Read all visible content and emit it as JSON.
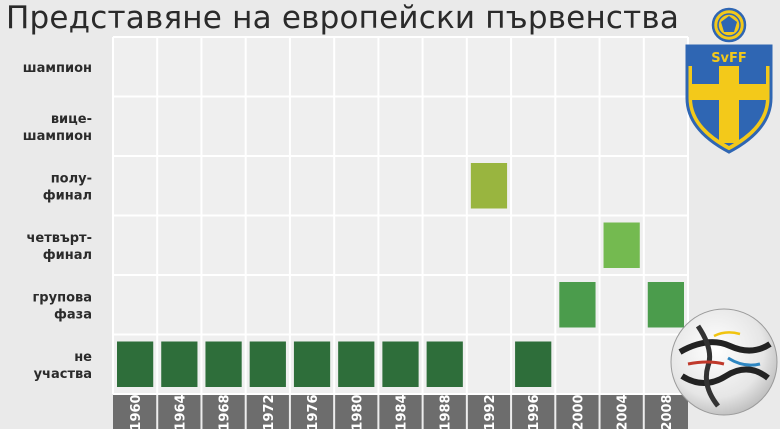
{
  "chart_data": {
    "type": "table",
    "title": "Представяне на европейски първенства",
    "levels": [
      [
        "шампион"
      ],
      [
        "вице-",
        "шампион"
      ],
      [
        "полу-",
        "финал"
      ],
      [
        "четвърт-",
        "финал"
      ],
      [
        "групова",
        "фаза"
      ],
      [
        "не",
        "участва"
      ]
    ],
    "years": [
      "1960",
      "1964",
      "1968",
      "1972",
      "1976",
      "1980",
      "1984",
      "1988",
      "1992",
      "1996",
      "2000",
      "2004",
      "2008"
    ],
    "results": [
      {
        "year": "1960",
        "level": 5
      },
      {
        "year": "1964",
        "level": 5
      },
      {
        "year": "1968",
        "level": 5
      },
      {
        "year": "1972",
        "level": 5
      },
      {
        "year": "1976",
        "level": 5
      },
      {
        "year": "1980",
        "level": 5
      },
      {
        "year": "1984",
        "level": 5
      },
      {
        "year": "1988",
        "level": 5
      },
      {
        "year": "1992",
        "level": 2
      },
      {
        "year": "1996",
        "level": 5
      },
      {
        "year": "2000",
        "level": 4
      },
      {
        "year": "2004",
        "level": 3
      },
      {
        "year": "2008",
        "level": 4
      }
    ],
    "level_colors": [
      "#c9a227",
      "#b5b83a",
      "#99b53f",
      "#74ba50",
      "#4b9c4c",
      "#2e6e3a"
    ]
  },
  "crest": {
    "label": "SvFF",
    "colors": {
      "blue": "#2f66b3",
      "yellow": "#f3c91a"
    }
  }
}
